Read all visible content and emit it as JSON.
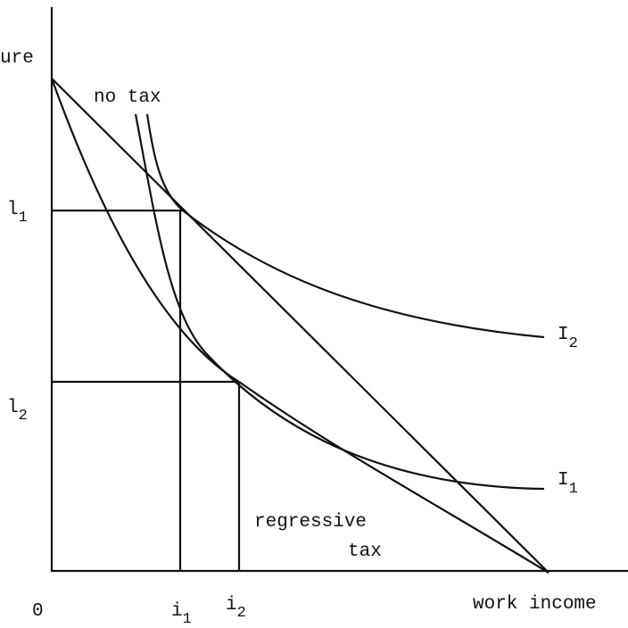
{
  "labels": {
    "y_axis": "ure",
    "no_tax": "no tax",
    "l1": {
      "main": "l",
      "sub": "1"
    },
    "l2": {
      "main": "l",
      "sub": "2"
    },
    "I2": {
      "main": "I",
      "sub": "2"
    },
    "I1": {
      "main": "I",
      "sub": "1"
    },
    "regressive_tax": [
      "regressive",
      "tax"
    ],
    "origin": "0",
    "i1": {
      "main": "i",
      "sub": "1"
    },
    "i2": {
      "main": "i",
      "sub": "2"
    },
    "x_axis": "work income"
  }
}
